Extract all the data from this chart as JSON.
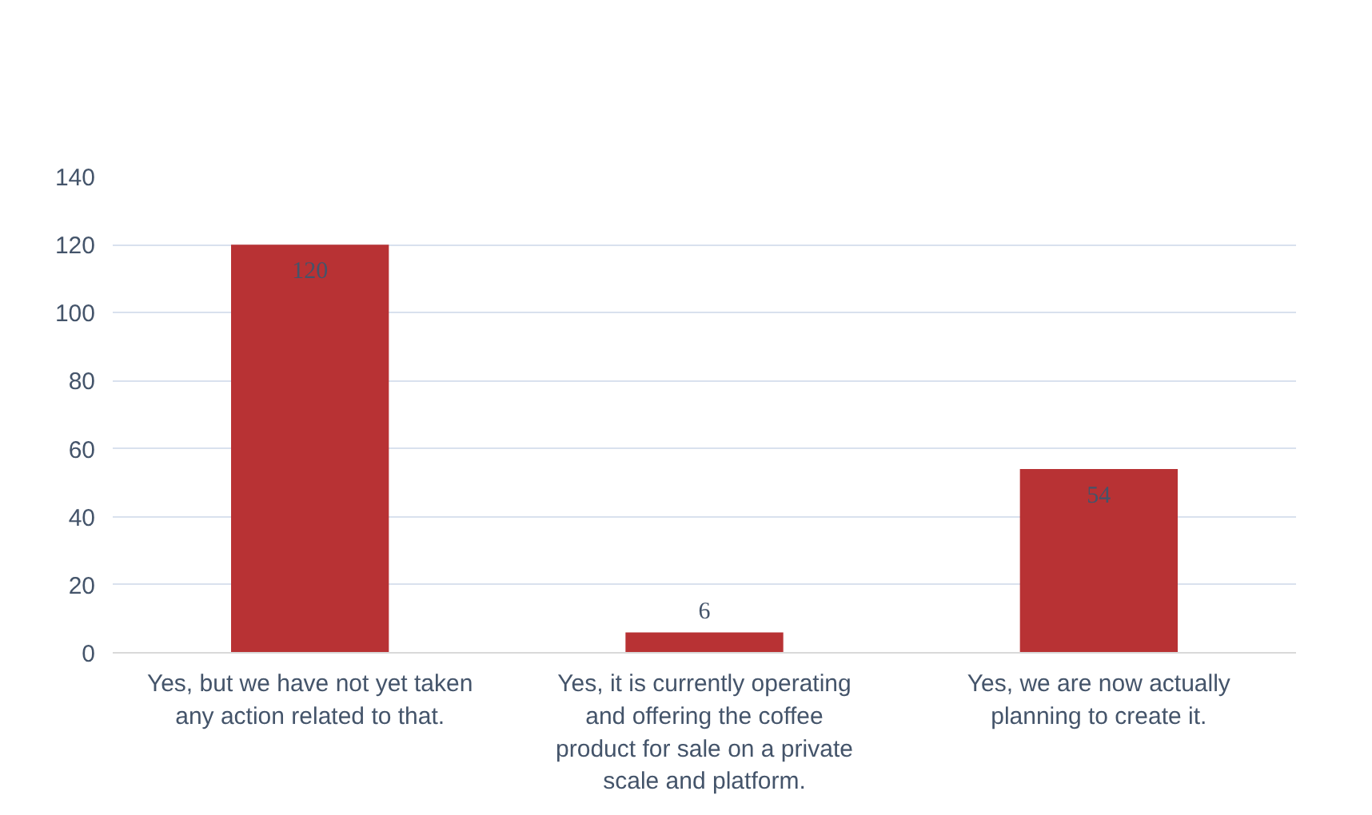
{
  "chart_data": {
    "type": "bar",
    "categories": [
      "Yes, but we have not yet taken any action related to that.",
      "Yes, it is currently operating and offering the coffee product for sale on a private scale and platform.",
      "Yes, we are now actually planning to create it."
    ],
    "values": [
      120,
      6,
      54
    ],
    "color": "#b83234",
    "ylim": [
      0,
      140
    ],
    "yticks": [
      0,
      20,
      40,
      60,
      80,
      100,
      120,
      140
    ],
    "grid": "y",
    "data_labels": true
  }
}
